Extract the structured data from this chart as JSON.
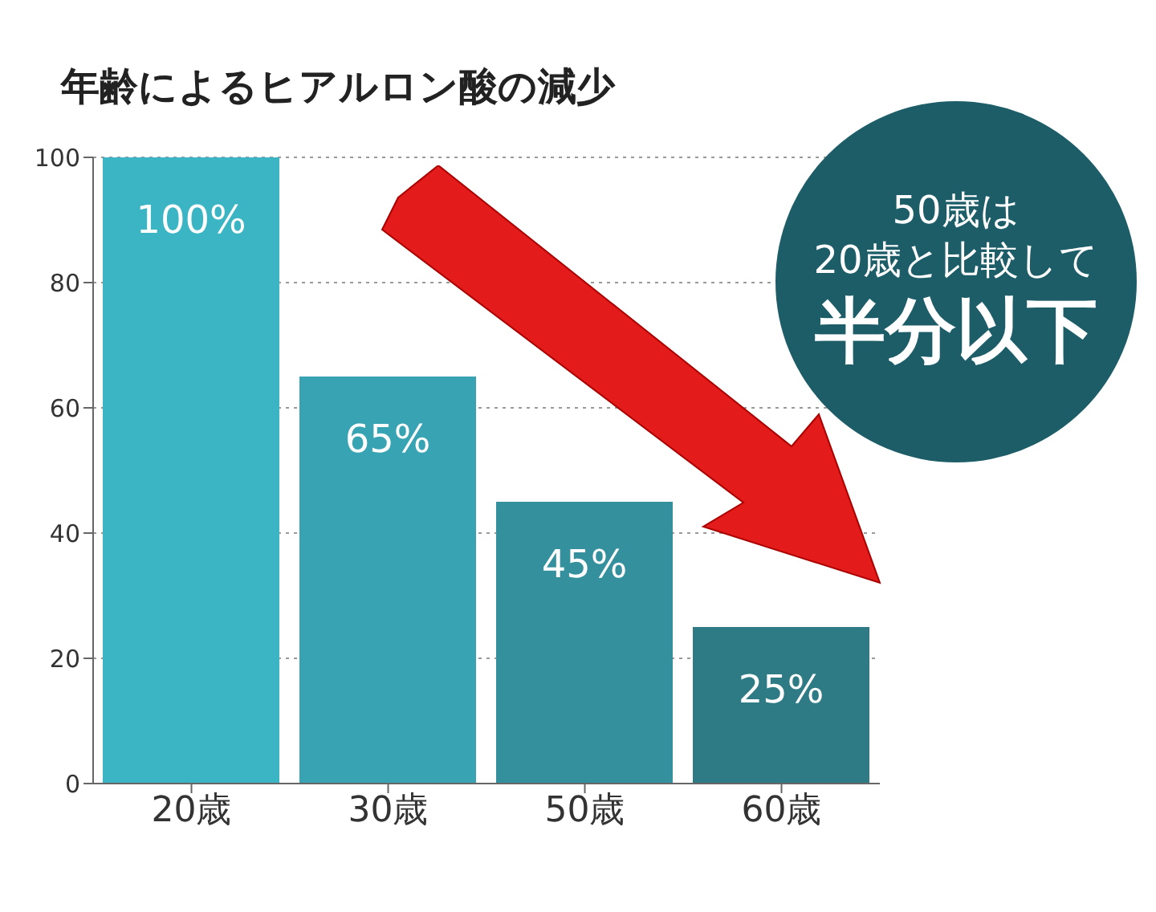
{
  "chart_data": {
    "type": "bar",
    "title": "年齢によるヒアルロン酸の減少",
    "categories": [
      "20歳",
      "30歳",
      "50歳",
      "60歳"
    ],
    "values": [
      100,
      65,
      45,
      25
    ],
    "value_labels": [
      "100%",
      "65%",
      "45%",
      "25%"
    ],
    "colors": [
      "#3bb5c3",
      "#38a4b3",
      "#33909c",
      "#2e7a85"
    ],
    "ylim": [
      0,
      100
    ],
    "yticks": [
      0,
      20,
      40,
      60,
      80,
      100
    ],
    "grid": "y",
    "legend": false,
    "annotations": [
      "50歳は",
      "20歳と比較して",
      "半分以下"
    ]
  }
}
